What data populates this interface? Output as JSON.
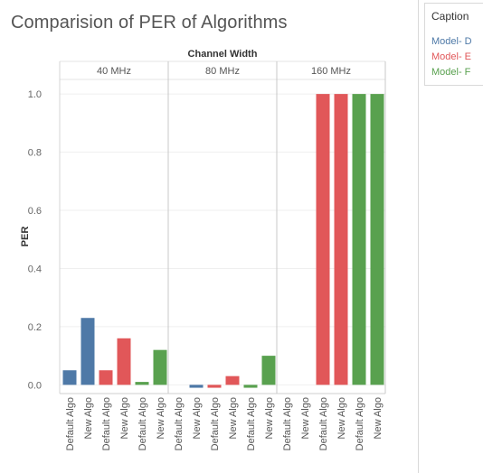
{
  "chart_data": {
    "type": "bar",
    "title": "Comparision of PER of Algorithms",
    "column_header": "Channel Width",
    "ylabel": "PER",
    "ylim": [
      -0.03,
      1.05
    ],
    "yticks": [
      "0.0",
      "0.2",
      "0.4",
      "0.6",
      "0.8",
      "1.0"
    ],
    "ytick_values": [
      0.0,
      0.2,
      0.4,
      0.6,
      0.8,
      1.0
    ],
    "grid": true,
    "legend_position": "right",
    "panels": [
      {
        "label": "40 MHz",
        "bars": [
          {
            "category": "Default Algo",
            "series": "Model- D",
            "value": 0.05
          },
          {
            "category": "New Algo",
            "series": "Model- D",
            "value": 0.23
          },
          {
            "category": "Default Algo",
            "series": "Model- E",
            "value": 0.05
          },
          {
            "category": "New Algo",
            "series": "Model- E",
            "value": 0.16
          },
          {
            "category": "Default Algo",
            "series": "Model- F",
            "value": 0.01
          },
          {
            "category": "New Algo",
            "series": "Model- F",
            "value": 0.12
          }
        ]
      },
      {
        "label": "80 MHz",
        "bars": [
          {
            "category": "Default Algo",
            "series": "Model- D",
            "value": 0.0
          },
          {
            "category": "New Algo",
            "series": "Model- D",
            "value": -0.01
          },
          {
            "category": "Default Algo",
            "series": "Model- E",
            "value": -0.01
          },
          {
            "category": "New Algo",
            "series": "Model- E",
            "value": 0.03
          },
          {
            "category": "Default Algo",
            "series": "Model- F",
            "value": -0.01
          },
          {
            "category": "New Algo",
            "series": "Model- F",
            "value": 0.1
          }
        ]
      },
      {
        "label": "160 MHz",
        "bars": [
          {
            "category": "Default Algo",
            "series": "Model- D",
            "value": 0.0
          },
          {
            "category": "New Algo",
            "series": "Model- D",
            "value": 0.0
          },
          {
            "category": "Default Algo",
            "series": "Model- E",
            "value": 1.0
          },
          {
            "category": "New Algo",
            "series": "Model- E",
            "value": 1.0
          },
          {
            "category": "Default Algo",
            "series": "Model- F",
            "value": 1.0
          },
          {
            "category": "New Algo",
            "series": "Model- F",
            "value": 1.0
          }
        ]
      }
    ],
    "legend": {
      "title": "Caption",
      "items": [
        {
          "name": "Model- D",
          "color": "#4e79a7"
        },
        {
          "name": "Model- E",
          "color": "#e15759"
        },
        {
          "name": "Model- F",
          "color": "#59a14f"
        }
      ]
    }
  }
}
